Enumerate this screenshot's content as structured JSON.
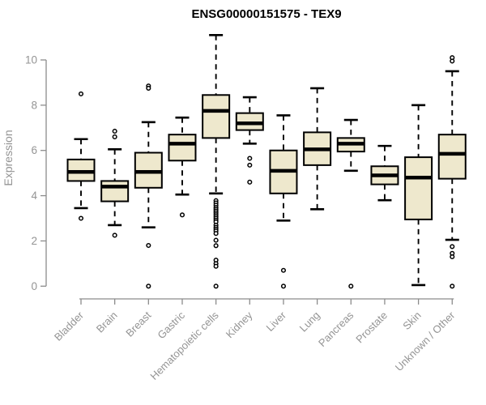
{
  "chart_data": {
    "type": "boxplot",
    "title": "ENSG00000151575 - TEX9",
    "ylabel": "Expression",
    "xlabel": "",
    "ylim": [
      0,
      10
    ],
    "yticks": [
      0,
      2,
      4,
      6,
      8,
      10
    ],
    "grid": false,
    "legend": "none",
    "categories": [
      "Bladder",
      "Brain",
      "Breast",
      "Gastric",
      "Hematopoietic cells",
      "Kidney",
      "Liver",
      "Lung",
      "Pancreas",
      "Prostate",
      "Skin",
      "Unknown / Other"
    ],
    "series": [
      {
        "name": "Bladder",
        "whisker_low": 3.45,
        "q1": 4.65,
        "median": 5.05,
        "q3": 5.6,
        "whisker_high": 6.5,
        "outliers": [
          8.5,
          3.0
        ]
      },
      {
        "name": "Brain",
        "whisker_low": 2.7,
        "q1": 3.75,
        "median": 4.4,
        "q3": 4.65,
        "whisker_high": 6.05,
        "outliers": [
          6.85,
          6.6,
          2.25
        ]
      },
      {
        "name": "Breast",
        "whisker_low": 2.6,
        "q1": 4.35,
        "median": 5.05,
        "q3": 5.9,
        "whisker_high": 7.25,
        "outliers": [
          8.85,
          8.75,
          1.8,
          0.0
        ]
      },
      {
        "name": "Gastric",
        "whisker_low": 4.05,
        "q1": 5.55,
        "median": 6.3,
        "q3": 6.7,
        "whisker_high": 7.45,
        "outliers": [
          3.15
        ]
      },
      {
        "name": "Hematopoietic cells",
        "whisker_low": 4.1,
        "q1": 6.55,
        "median": 7.75,
        "q3": 8.45,
        "whisker_high": 11.1,
        "outliers": [
          3.78,
          3.68,
          3.58,
          3.48,
          3.4,
          3.32,
          3.24,
          3.16,
          3.08,
          3.0,
          2.92,
          2.84,
          2.7,
          2.6,
          2.52,
          2.44,
          2.33,
          2.03,
          1.79,
          1.15,
          1.0,
          0.88,
          0.0
        ]
      },
      {
        "name": "Kidney",
        "whisker_low": 6.3,
        "q1": 6.9,
        "median": 7.2,
        "q3": 7.65,
        "whisker_high": 8.35,
        "outliers": [
          5.65,
          5.35,
          4.6
        ]
      },
      {
        "name": "Liver",
        "whisker_low": 2.9,
        "q1": 4.1,
        "median": 5.1,
        "q3": 6.0,
        "whisker_high": 7.55,
        "outliers": [
          0.7,
          0.0
        ]
      },
      {
        "name": "Lung",
        "whisker_low": 3.4,
        "q1": 5.35,
        "median": 6.05,
        "q3": 6.8,
        "whisker_high": 8.75,
        "outliers": []
      },
      {
        "name": "Pancreas",
        "whisker_low": 5.1,
        "q1": 5.95,
        "median": 6.3,
        "q3": 6.55,
        "whisker_high": 7.35,
        "outliers": [
          0.0
        ]
      },
      {
        "name": "Prostate",
        "whisker_low": 3.8,
        "q1": 4.5,
        "median": 4.9,
        "q3": 5.3,
        "whisker_high": 6.2,
        "outliers": []
      },
      {
        "name": "Skin",
        "whisker_low": 0.05,
        "q1": 2.95,
        "median": 4.8,
        "q3": 5.7,
        "whisker_high": 8.0,
        "outliers": []
      },
      {
        "name": "Unknown / Other",
        "whisker_low": 2.05,
        "q1": 4.75,
        "median": 5.85,
        "q3": 6.7,
        "whisker_high": 9.5,
        "outliers": [
          10.1,
          9.95,
          1.75,
          1.45,
          1.3,
          0.0
        ]
      }
    ],
    "colors": {
      "box_fill": "#EEE8CD",
      "box_stroke": "#000000",
      "median": "#000000",
      "whisker": "#000000",
      "outlier_stroke": "#000000",
      "outlier_fill": "#FFFFFF",
      "axis": "#8C8C8C",
      "tick_label": "#949494",
      "title": "#000000",
      "background": "#FFFFFF"
    }
  }
}
